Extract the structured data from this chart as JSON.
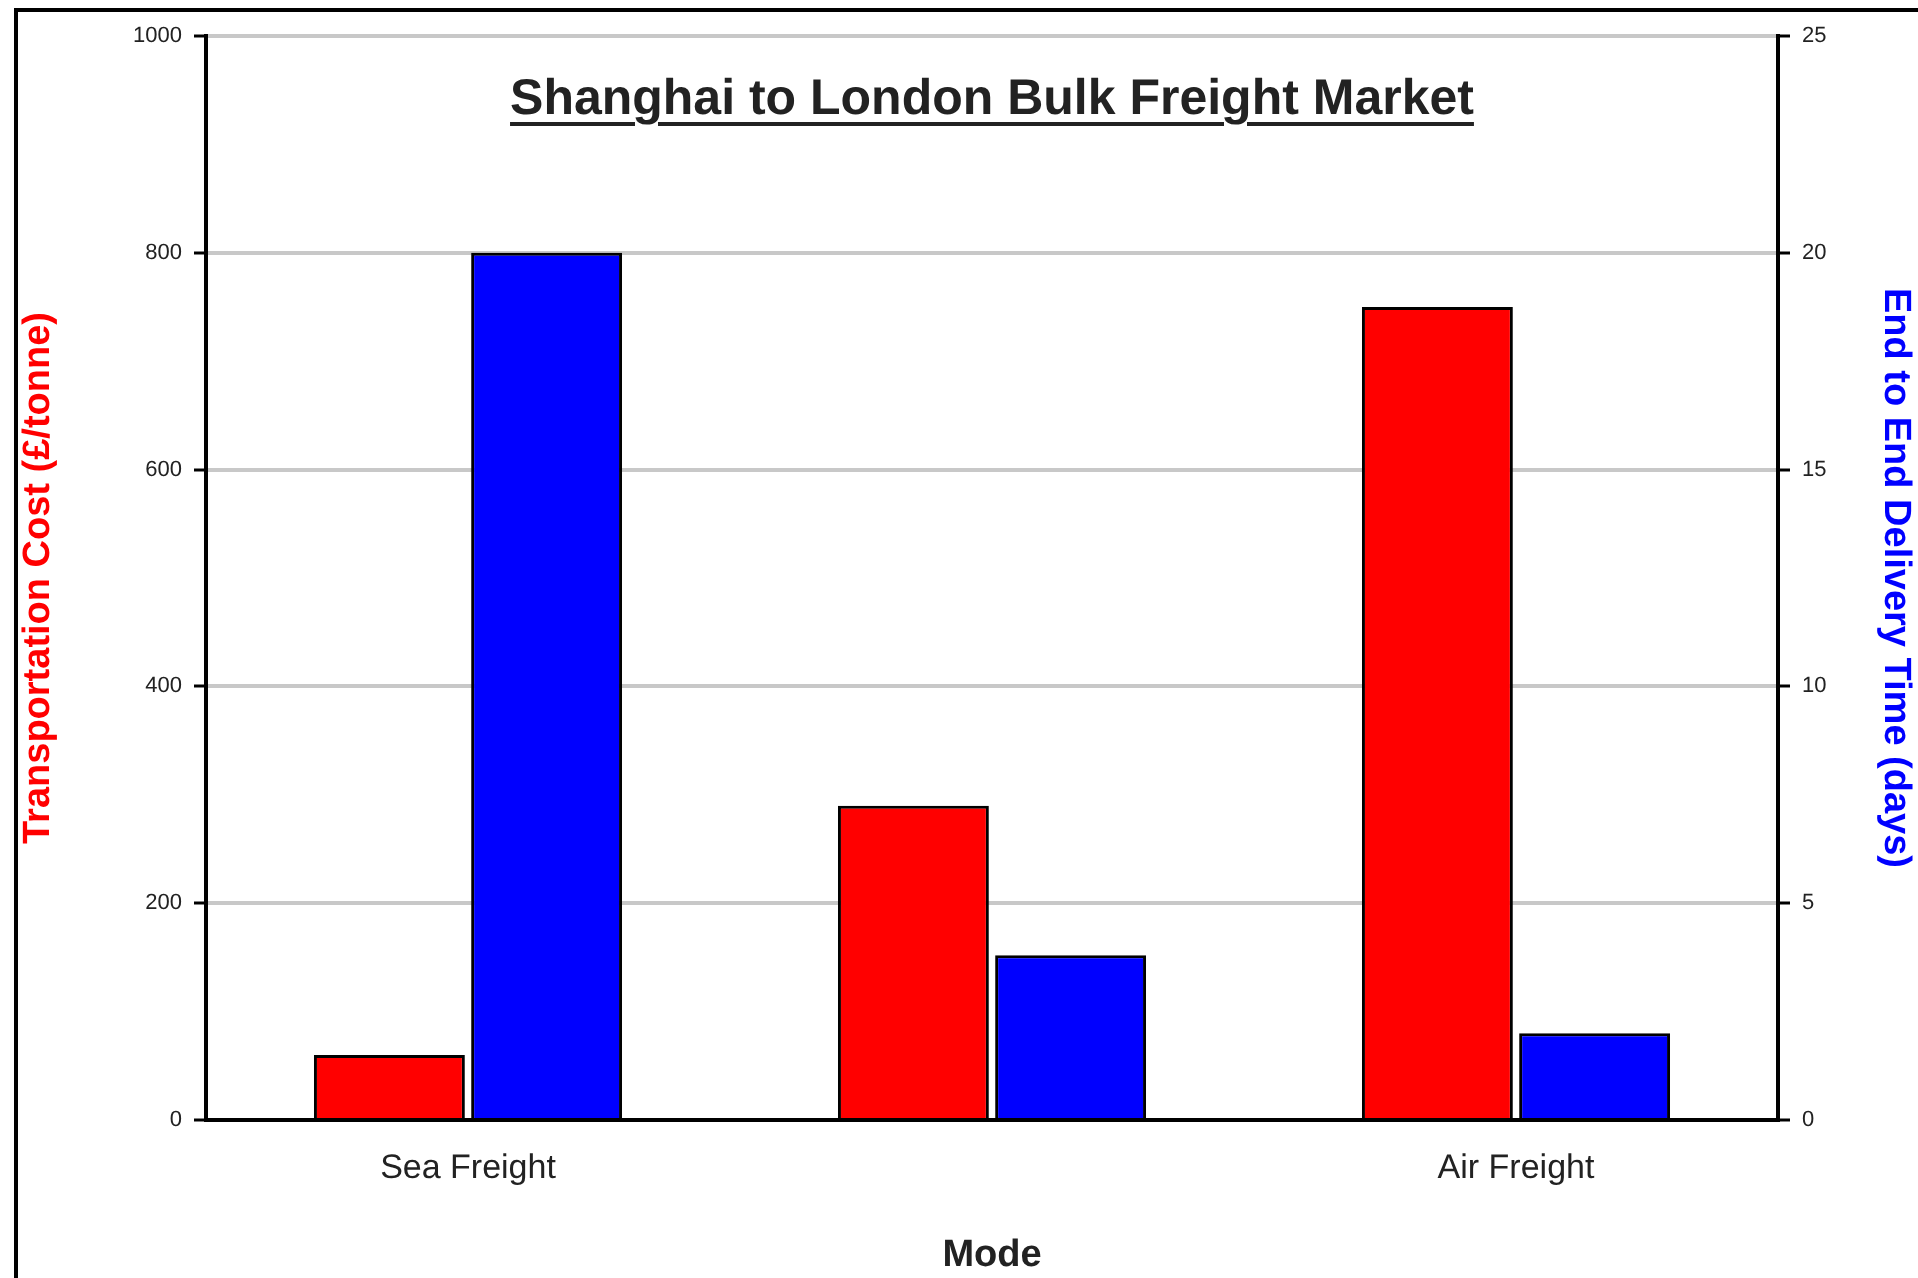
{
  "chart_data": {
    "type": "bar",
    "title": "Shanghai to London Bulk Freight Market",
    "xlabel": "Mode",
    "ylabel": "Transportation Cost (£/tonne)",
    "y2label": "End to End Delivery Time (days)",
    "categories": [
      "Sea Freight",
      null,
      "Air Freight"
    ],
    "series": [
      {
        "color": "#ff0000",
        "values": [
          60,
          290,
          750
        ]
      },
      {
        "color": "#0000ff",
        "axis": "y2",
        "values": [
          20,
          3.8,
          2
        ]
      }
    ],
    "ylim": [
      0,
      1000
    ],
    "yticks": [
      0,
      200,
      400,
      600,
      800,
      1000
    ],
    "y2lim": [
      0,
      25
    ],
    "y2ticks": [
      0,
      5,
      10,
      15,
      20,
      25
    ],
    "grid": "y",
    "legend": false
  }
}
